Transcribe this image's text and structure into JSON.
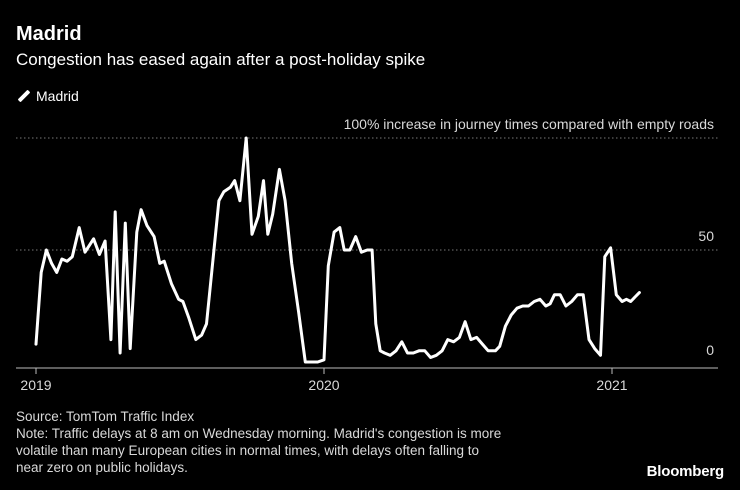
{
  "header": {
    "title": "Madrid",
    "subtitle": "Congestion has eased again after a post-holiday spike"
  },
  "legend": {
    "label": "Madrid"
  },
  "footer": {
    "source": "Source: TomTom Traffic Index",
    "note_lines": [
      "Note: Traffic delays at 8 am on Wednesday morning. Madrid's congestion is more",
      "volatile than many European cities in normal times, with delays often falling to",
      "near zero on public holidays."
    ]
  },
  "brand": "Bloomberg",
  "colors": {
    "background": "#000000",
    "line": "#ffffff",
    "grid": "#777777",
    "text": "#ffffff"
  },
  "chart_data": {
    "type": "line",
    "title": "Madrid",
    "subtitle": "Congestion has eased again after a post-holiday spike",
    "xlabel": "",
    "ylabel": "% increase in journey times compared with empty roads",
    "xlim": [
      2019.0,
      2021.33
    ],
    "ylim": [
      0,
      100
    ],
    "gridlines": [
      {
        "y": 100,
        "label": "100% increase in journey times compared with empty roads"
      },
      {
        "y": 50,
        "label": "50"
      },
      {
        "y": 0,
        "label": "0"
      }
    ],
    "x_ticks": [
      {
        "x": 2019.0,
        "label": "2019"
      },
      {
        "x": 2020.0,
        "label": "2020"
      },
      {
        "x": 2021.0,
        "label": "2021"
      }
    ],
    "series": [
      {
        "name": "Madrid",
        "points": [
          [
            2019.0,
            8
          ],
          [
            2019.018,
            40
          ],
          [
            2019.036,
            50
          ],
          [
            2019.054,
            44
          ],
          [
            2019.072,
            40
          ],
          [
            2019.09,
            46
          ],
          [
            2019.108,
            45
          ],
          [
            2019.126,
            47
          ],
          [
            2019.15,
            60
          ],
          [
            2019.17,
            49
          ],
          [
            2019.2,
            55
          ],
          [
            2019.22,
            48
          ],
          [
            2019.24,
            54
          ],
          [
            2019.26,
            10
          ],
          [
            2019.275,
            67
          ],
          [
            2019.292,
            4
          ],
          [
            2019.31,
            62
          ],
          [
            2019.327,
            6
          ],
          [
            2019.35,
            58
          ],
          [
            2019.365,
            68
          ],
          [
            2019.385,
            61
          ],
          [
            2019.41,
            56
          ],
          [
            2019.43,
            44
          ],
          [
            2019.445,
            45
          ],
          [
            2019.47,
            35
          ],
          [
            2019.495,
            28
          ],
          [
            2019.51,
            27
          ],
          [
            2019.53,
            20
          ],
          [
            2019.555,
            10
          ],
          [
            2019.575,
            12
          ],
          [
            2019.592,
            17
          ],
          [
            2019.61,
            40
          ],
          [
            2019.635,
            72
          ],
          [
            2019.652,
            76
          ],
          [
            2019.675,
            78
          ],
          [
            2019.69,
            81
          ],
          [
            2019.708,
            72
          ],
          [
            2019.73,
            100
          ],
          [
            2019.75,
            57
          ],
          [
            2019.772,
            65
          ],
          [
            2019.79,
            81
          ],
          [
            2019.805,
            57
          ],
          [
            2019.822,
            66
          ],
          [
            2019.845,
            86
          ],
          [
            2019.865,
            72
          ],
          [
            2019.888,
            44
          ],
          [
            2019.912,
            22
          ],
          [
            2019.935,
            0
          ],
          [
            2019.95,
            0
          ],
          [
            2019.965,
            0
          ],
          [
            2019.978,
            0
          ],
          [
            2020.0,
            1
          ],
          [
            2020.015,
            43
          ],
          [
            2020.035,
            58
          ],
          [
            2020.055,
            60
          ],
          [
            2020.07,
            50
          ],
          [
            2020.09,
            50
          ],
          [
            2020.11,
            56
          ],
          [
            2020.13,
            49
          ],
          [
            2020.15,
            50
          ],
          [
            2020.167,
            50
          ],
          [
            2020.18,
            17
          ],
          [
            2020.195,
            5
          ],
          [
            2020.21,
            4
          ],
          [
            2020.23,
            3
          ],
          [
            2020.25,
            5
          ],
          [
            2020.27,
            9
          ],
          [
            2020.29,
            4
          ],
          [
            2020.31,
            4
          ],
          [
            2020.33,
            5
          ],
          [
            2020.35,
            5
          ],
          [
            2020.37,
            2
          ],
          [
            2020.39,
            3
          ],
          [
            2020.41,
            5
          ],
          [
            2020.43,
            10
          ],
          [
            2020.45,
            9
          ],
          [
            2020.47,
            11
          ],
          [
            2020.49,
            18
          ],
          [
            2020.51,
            10
          ],
          [
            2020.53,
            11
          ],
          [
            2020.55,
            8
          ],
          [
            2020.57,
            5
          ],
          [
            2020.595,
            5
          ],
          [
            2020.61,
            7
          ],
          [
            2020.63,
            16
          ],
          [
            2020.65,
            21
          ],
          [
            2020.67,
            24
          ],
          [
            2020.69,
            25
          ],
          [
            2020.71,
            25
          ],
          [
            2020.73,
            27
          ],
          [
            2020.75,
            28
          ],
          [
            2020.77,
            25
          ],
          [
            2020.785,
            26
          ],
          [
            2020.8,
            30
          ],
          [
            2020.82,
            30
          ],
          [
            2020.84,
            25
          ],
          [
            2020.86,
            27
          ],
          [
            2020.88,
            30
          ],
          [
            2020.9,
            30
          ],
          [
            2020.92,
            10
          ],
          [
            2020.94,
            6
          ],
          [
            2020.96,
            3
          ],
          [
            2020.975,
            47
          ],
          [
            2020.995,
            51
          ],
          [
            2021.015,
            30
          ],
          [
            2021.035,
            27
          ],
          [
            2021.05,
            28
          ],
          [
            2021.065,
            27
          ],
          [
            2021.08,
            29
          ],
          [
            2021.095,
            31
          ]
        ]
      }
    ]
  }
}
